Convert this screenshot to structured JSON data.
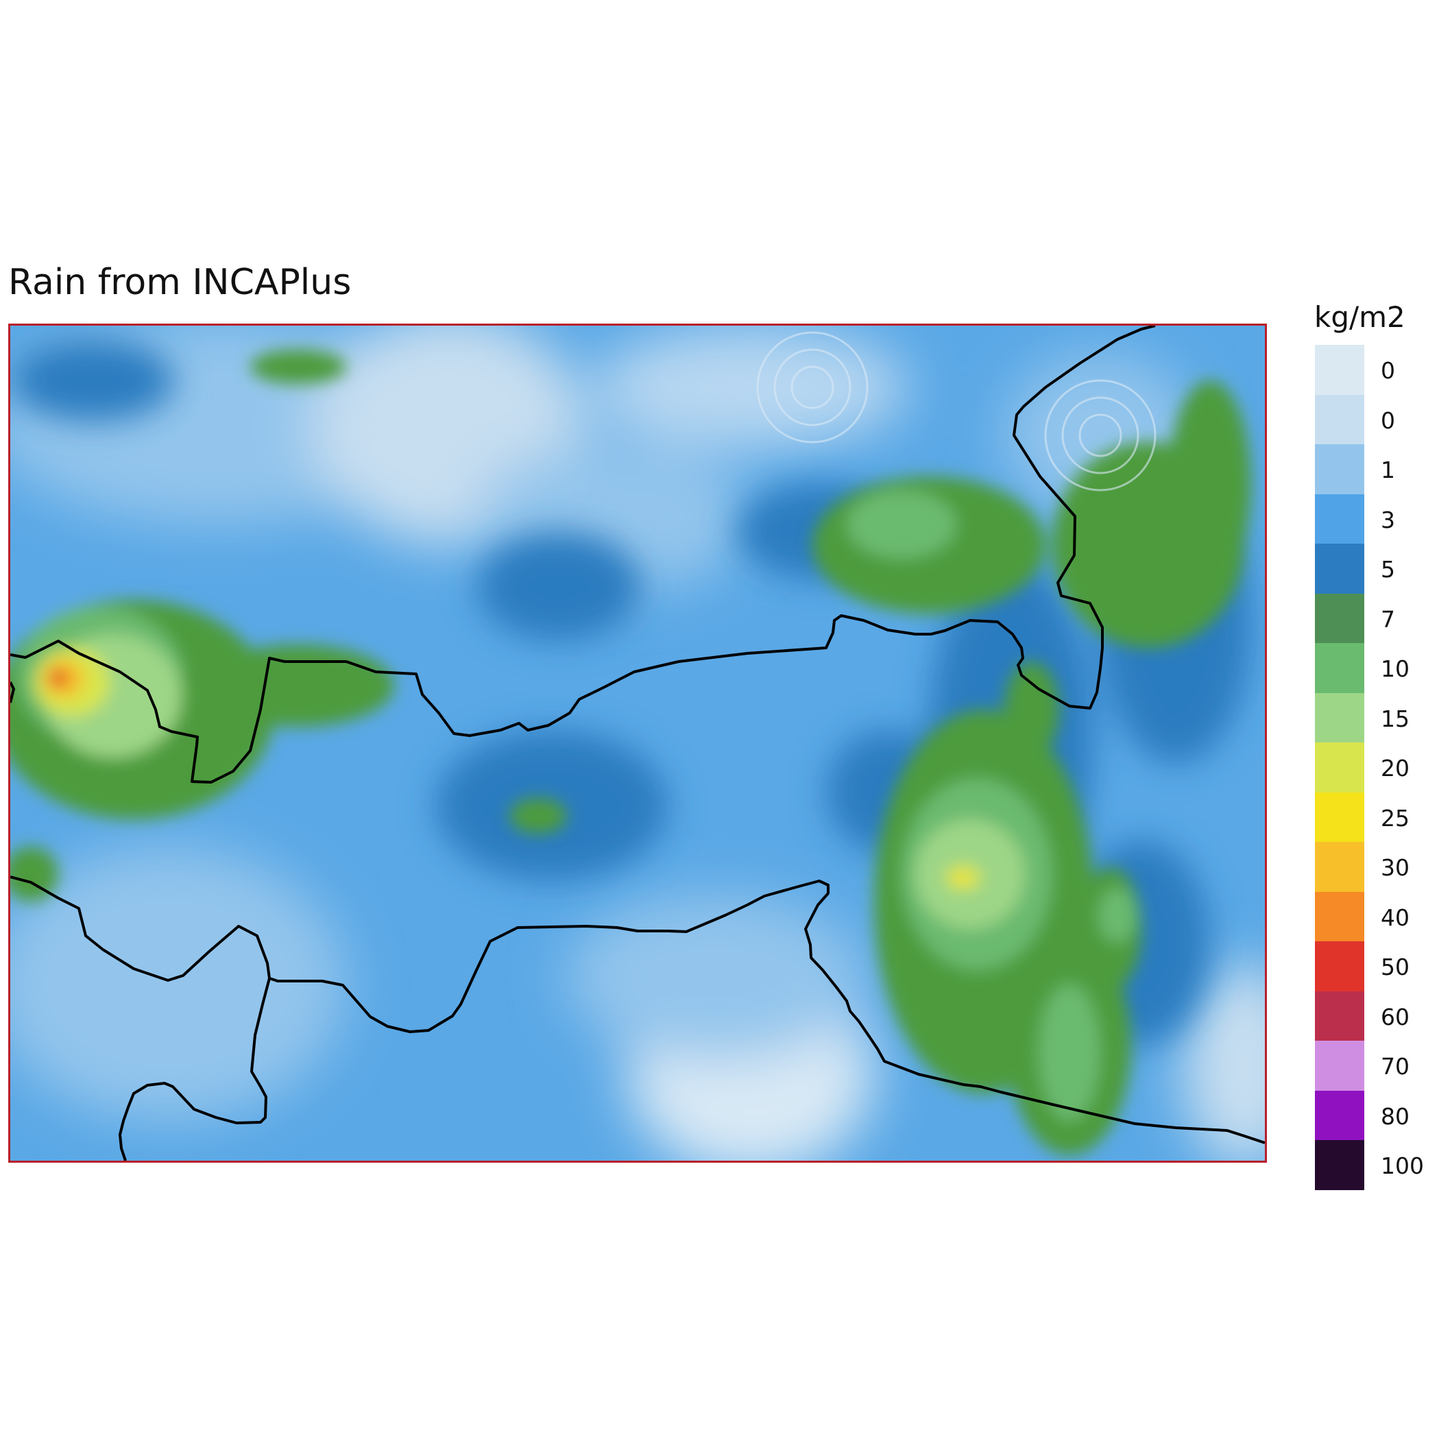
{
  "title": "Rain from INCAPlus",
  "legend": {
    "unit": "kg/m2",
    "levels": [
      {
        "label": "0",
        "color": "#dbe9f2"
      },
      {
        "label": "0",
        "color": "#c7def0"
      },
      {
        "label": "1",
        "color": "#93c5ec"
      },
      {
        "label": "3",
        "color": "#4fa3e6"
      },
      {
        "label": "5",
        "color": "#2b7cc0"
      },
      {
        "label": "7",
        "color": "#4e8f55"
      },
      {
        "label": "10",
        "color": "#6aba70"
      },
      {
        "label": "15",
        "color": "#9ed687"
      },
      {
        "label": "20",
        "color": "#d9e54c"
      },
      {
        "label": "25",
        "color": "#f5e21a"
      },
      {
        "label": "30",
        "color": "#f7c02a"
      },
      {
        "label": "40",
        "color": "#f58a26"
      },
      {
        "label": "50",
        "color": "#e0342a"
      },
      {
        "label": "60",
        "color": "#bc2f4c"
      },
      {
        "label": "70",
        "color": "#d08ee2"
      },
      {
        "label": "80",
        "color": "#9011c0"
      },
      {
        "label": "100",
        "color": "#250a2e"
      }
    ]
  },
  "map": {
    "border_color": "#b8202a",
    "boundary_color": "#000000"
  }
}
